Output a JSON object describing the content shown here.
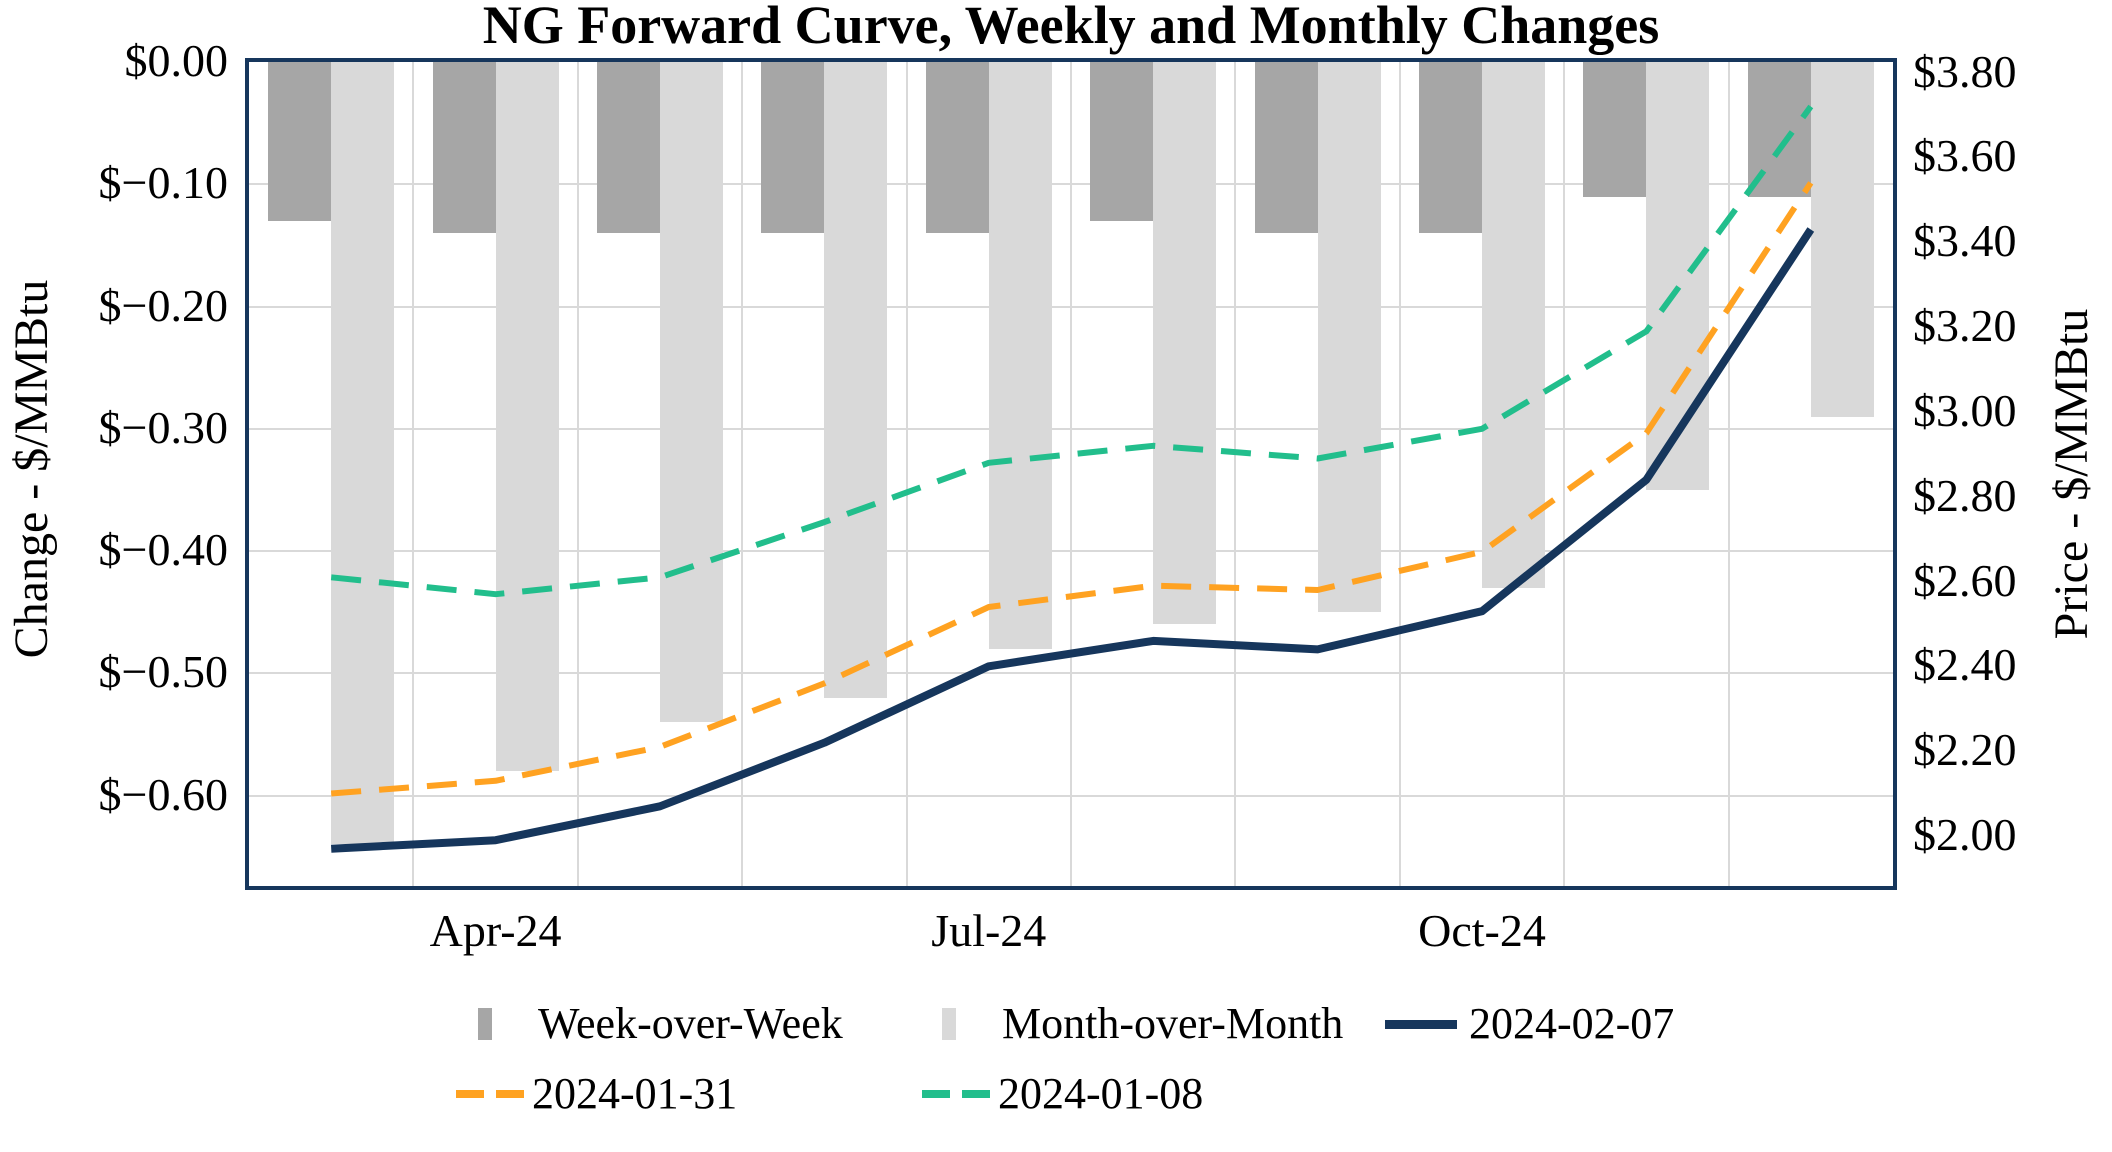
{
  "title": "NG Forward Curve, Weekly and Monthly Changes",
  "chart_data": {
    "type": "bar+line combo",
    "categories": [
      "Mar-24",
      "Apr-24",
      "May-24",
      "Jun-24",
      "Jul-24",
      "Aug-24",
      "Sep-24",
      "Oct-24",
      "Nov-24",
      "Dec-24"
    ],
    "x_axis": {
      "visible_tick_labels": [
        {
          "category_index": 1,
          "label": "Apr-24"
        },
        {
          "category_index": 4,
          "label": "Jul-24"
        },
        {
          "category_index": 7,
          "label": "Oct-24"
        }
      ]
    },
    "left_axis": {
      "title": "Change - $/MMBtu",
      "tick_labels": [
        "$0.00",
        "$−0.10",
        "$−0.20",
        "$−0.30",
        "$−0.40",
        "$−0.50",
        "$−0.60"
      ],
      "tick_values": [
        0,
        -0.1,
        -0.2,
        -0.3,
        -0.4,
        -0.5,
        -0.6
      ],
      "range_top": 0,
      "range_bottom": -0.674
    },
    "right_axis": {
      "title": "Price - $/MMBtu",
      "tick_labels": [
        "$3.80",
        "$3.60",
        "$3.40",
        "$3.20",
        "$3.00",
        "$2.80",
        "$2.60",
        "$2.40",
        "$2.20",
        "$2.00"
      ],
      "tick_values": [
        3.8,
        3.6,
        3.4,
        3.2,
        3.0,
        2.8,
        2.6,
        2.4,
        2.2,
        2.0
      ],
      "range_top": 3.825,
      "range_bottom": 1.882
    },
    "bar_series": [
      {
        "name": "Week-over-Week",
        "axis": "left",
        "color": "#A6A6A6",
        "values": [
          -0.13,
          -0.14,
          -0.14,
          -0.14,
          -0.14,
          -0.13,
          -0.14,
          -0.14,
          -0.11,
          -0.11
        ]
      },
      {
        "name": "Month-over-Month",
        "axis": "left",
        "color": "#D9D9D9",
        "values": [
          -0.64,
          -0.58,
          -0.54,
          -0.52,
          -0.48,
          -0.46,
          -0.45,
          -0.43,
          -0.35,
          -0.29
        ]
      }
    ],
    "line_series": [
      {
        "name": "2024-02-07",
        "axis": "right",
        "color": "#16365C",
        "style": "solid",
        "values": [
          1.97,
          1.99,
          2.07,
          2.22,
          2.4,
          2.46,
          2.44,
          2.53,
          2.84,
          3.43
        ]
      },
      {
        "name": "2024-01-31",
        "axis": "right",
        "color": "#FFA221",
        "style": "dashed",
        "values": [
          2.1,
          2.13,
          2.21,
          2.36,
          2.54,
          2.59,
          2.58,
          2.67,
          2.95,
          3.54
        ]
      },
      {
        "name": "2024-01-08",
        "axis": "right",
        "color": "#22BE8C",
        "style": "dashed",
        "values": [
          2.61,
          2.57,
          2.61,
          2.74,
          2.88,
          2.92,
          2.89,
          2.96,
          3.19,
          3.72
        ]
      }
    ],
    "legend": {
      "position": "bottom",
      "rows": [
        [
          "Week-over-Week",
          "Month-over-Month",
          "2024-02-07"
        ],
        [
          "2024-01-31",
          "2024-01-08"
        ]
      ]
    },
    "grid": {
      "horizontal": true,
      "vertical": true,
      "color": "#D9D9D9"
    }
  },
  "colors": {
    "navy": "#16365C",
    "orange": "#FFA221",
    "green": "#22BE8C",
    "dark_gray": "#A6A6A6",
    "light_gray": "#D9D9D9",
    "gridline": "#D9D9D9",
    "plot_border": "#16365C",
    "background": "#FFFFFF",
    "text": "#000000"
  }
}
